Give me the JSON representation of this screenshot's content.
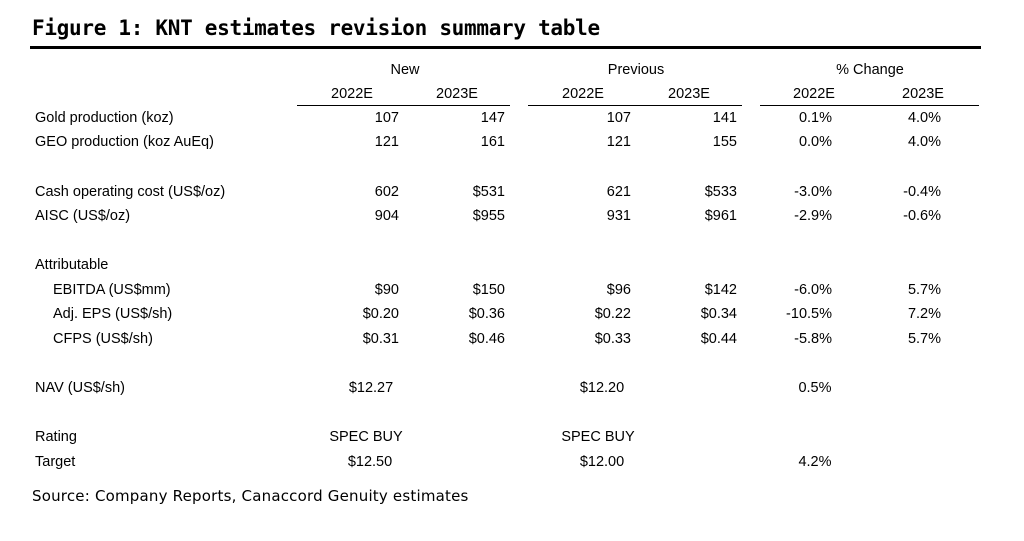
{
  "title": "Figure 1: KNT estimates revision summary table",
  "groups": {
    "new": "New",
    "previous": "Previous",
    "change": "% Change"
  },
  "years": [
    "2022E",
    "2023E",
    "2022E",
    "2023E",
    "2022E",
    "2023E"
  ],
  "rows": [
    {
      "label": "Gold production (koz)",
      "values": [
        "107",
        "147",
        "107",
        "141",
        "0.1%",
        "4.0%"
      ]
    },
    {
      "label": "GEO production (koz AuEq)",
      "values": [
        "121",
        "161",
        "121",
        "155",
        "0.0%",
        "4.0%"
      ]
    },
    {
      "label": "Cash operating cost (US$/oz)",
      "values": [
        "602",
        "$531",
        "621",
        "$533",
        "-3.0%",
        "-0.4%"
      ]
    },
    {
      "label": "AISC (US$/oz)",
      "values": [
        "904",
        "$955",
        "931",
        "$961",
        "-2.9%",
        "-0.6%"
      ]
    },
    {
      "label": "Attributable",
      "values": [
        "",
        "",
        "",
        "",
        "",
        ""
      ]
    },
    {
      "label": "EBITDA (US$mm)",
      "values": [
        "$90",
        "$150",
        "$96",
        "$142",
        "-6.0%",
        "5.7%"
      ]
    },
    {
      "label": "Adj. EPS (US$/sh)",
      "values": [
        "$0.20",
        "$0.36",
        "$0.22",
        "$0.34",
        "-10.5%",
        "7.2%"
      ]
    },
    {
      "label": "CFPS (US$/sh)",
      "values": [
        "$0.31",
        "$0.46",
        "$0.33",
        "$0.44",
        "-5.8%",
        "5.7%"
      ]
    },
    {
      "label": "NAV (US$/sh)",
      "values": [
        "$12.27",
        "",
        "$12.20",
        "",
        "0.5%",
        ""
      ]
    },
    {
      "label": "Rating",
      "values": [
        "SPEC BUY",
        "",
        "SPEC BUY",
        "",
        "",
        ""
      ]
    },
    {
      "label": "Target",
      "values": [
        "$12.50",
        "",
        "$12.00",
        "",
        "4.2%",
        ""
      ]
    }
  ],
  "source": "Source: Company Reports, Canaccord Genuity estimates"
}
